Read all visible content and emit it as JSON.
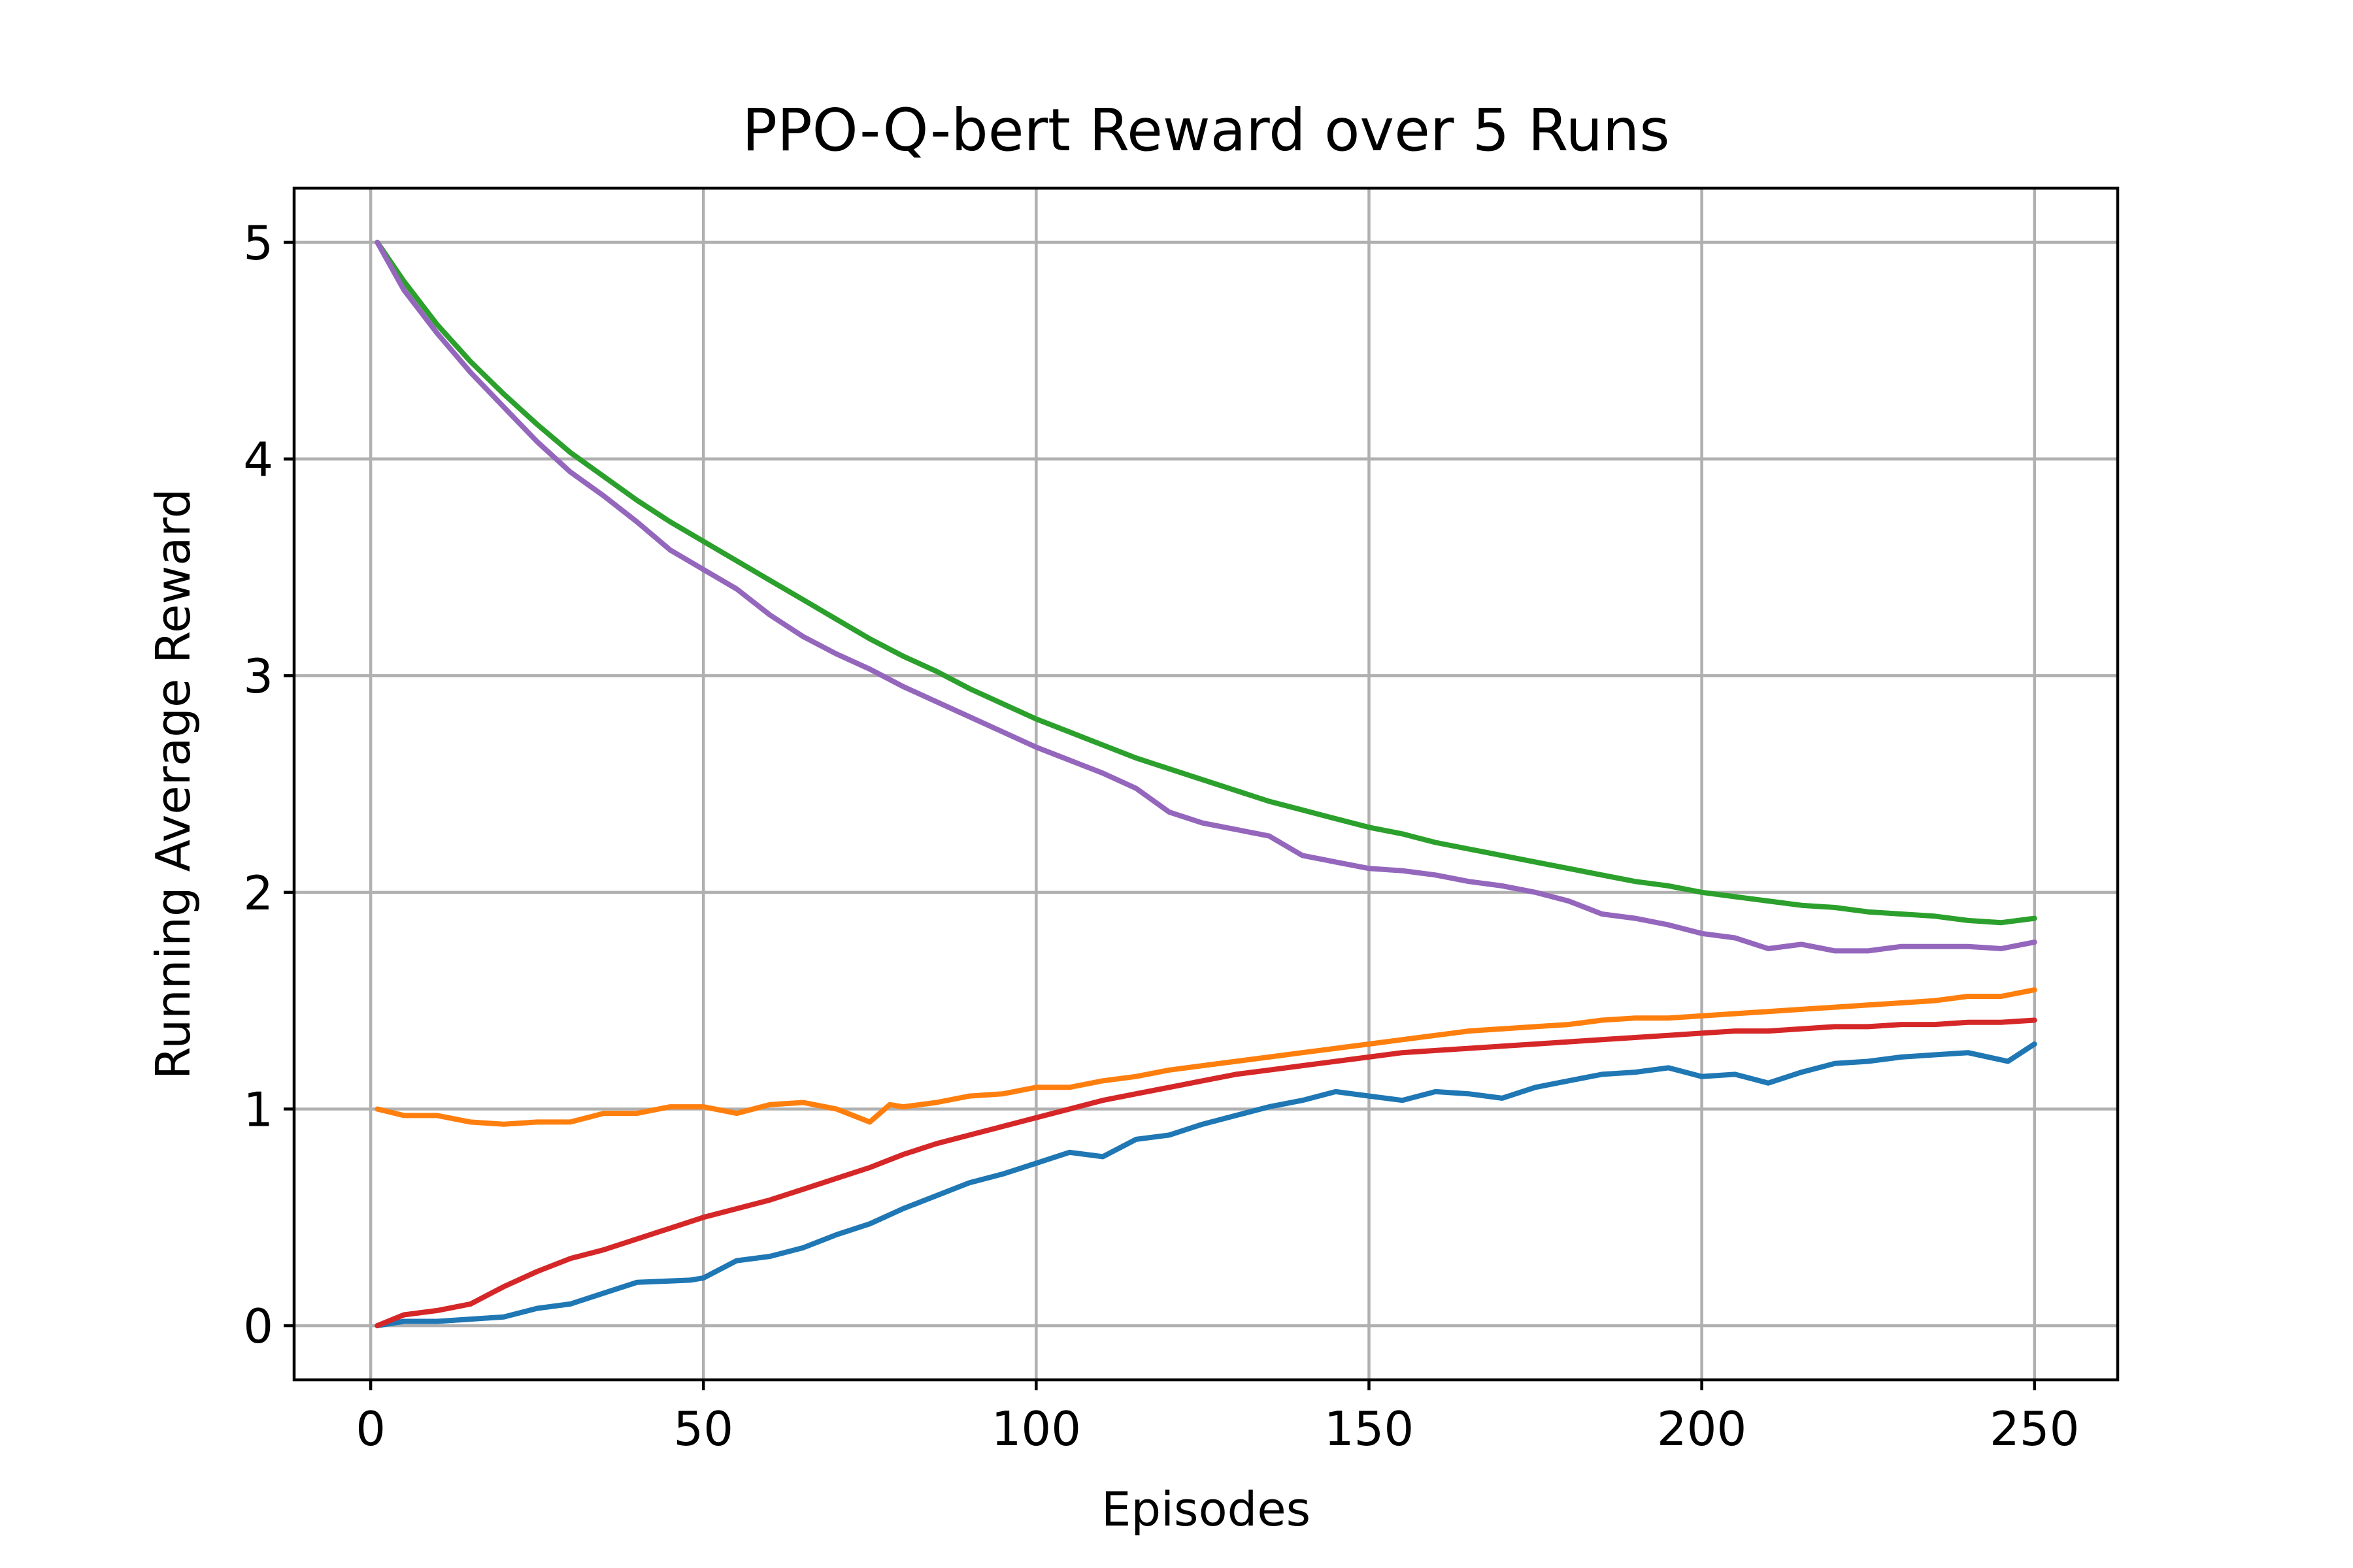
{
  "chart_data": {
    "type": "line",
    "title": "PPO-Q-bert Reward over 5 Runs",
    "xlabel": "Episodes",
    "ylabel": "Running Average Reward",
    "xlim": [
      -11.5,
      262.5
    ],
    "ylim": [
      -0.25,
      5.25
    ],
    "xticks": [
      "0",
      "50",
      "100",
      "150",
      "200",
      "250"
    ],
    "yticks": [
      "0",
      "1",
      "2",
      "3",
      "4",
      "5"
    ],
    "xtick_values": [
      0,
      50,
      100,
      150,
      200,
      250
    ],
    "ytick_values": [
      0,
      1,
      2,
      3,
      4,
      5
    ],
    "grid": true,
    "series": [
      {
        "color": "#1f77b4",
        "points": [
          [
            1,
            0.0
          ],
          [
            5,
            0.02
          ],
          [
            10,
            0.02
          ],
          [
            15,
            0.03
          ],
          [
            20,
            0.04
          ],
          [
            25,
            0.08
          ],
          [
            30,
            0.1
          ],
          [
            35,
            0.15
          ],
          [
            40,
            0.2
          ],
          [
            48,
            0.21
          ],
          [
            50,
            0.22
          ],
          [
            55,
            0.3
          ],
          [
            60,
            0.32
          ],
          [
            65,
            0.36
          ],
          [
            70,
            0.42
          ],
          [
            75,
            0.47
          ],
          [
            80,
            0.54
          ],
          [
            85,
            0.6
          ],
          [
            90,
            0.66
          ],
          [
            95,
            0.7
          ],
          [
            100,
            0.75
          ],
          [
            105,
            0.8
          ],
          [
            110,
            0.78
          ],
          [
            115,
            0.86
          ],
          [
            120,
            0.88
          ],
          [
            125,
            0.93
          ],
          [
            130,
            0.97
          ],
          [
            135,
            1.01
          ],
          [
            140,
            1.04
          ],
          [
            145,
            1.08
          ],
          [
            150,
            1.06
          ],
          [
            155,
            1.04
          ],
          [
            160,
            1.08
          ],
          [
            165,
            1.07
          ],
          [
            170,
            1.05
          ],
          [
            175,
            1.1
          ],
          [
            180,
            1.13
          ],
          [
            185,
            1.16
          ],
          [
            190,
            1.17
          ],
          [
            195,
            1.19
          ],
          [
            200,
            1.15
          ],
          [
            205,
            1.16
          ],
          [
            210,
            1.12
          ],
          [
            215,
            1.17
          ],
          [
            220,
            1.21
          ],
          [
            225,
            1.22
          ],
          [
            230,
            1.24
          ],
          [
            235,
            1.25
          ],
          [
            240,
            1.26
          ],
          [
            246,
            1.22
          ],
          [
            250,
            1.3
          ]
        ]
      },
      {
        "color": "#ff7f0e",
        "points": [
          [
            1,
            1.0
          ],
          [
            5,
            0.97
          ],
          [
            10,
            0.97
          ],
          [
            15,
            0.94
          ],
          [
            20,
            0.93
          ],
          [
            25,
            0.94
          ],
          [
            30,
            0.94
          ],
          [
            35,
            0.98
          ],
          [
            40,
            0.98
          ],
          [
            45,
            1.01
          ],
          [
            50,
            1.01
          ],
          [
            55,
            0.98
          ],
          [
            60,
            1.02
          ],
          [
            65,
            1.03
          ],
          [
            70,
            1.0
          ],
          [
            75,
            0.94
          ],
          [
            78,
            1.02
          ],
          [
            80,
            1.01
          ],
          [
            85,
            1.03
          ],
          [
            90,
            1.06
          ],
          [
            95,
            1.07
          ],
          [
            100,
            1.1
          ],
          [
            105,
            1.1
          ],
          [
            110,
            1.13
          ],
          [
            115,
            1.15
          ],
          [
            120,
            1.18
          ],
          [
            125,
            1.2
          ],
          [
            130,
            1.22
          ],
          [
            135,
            1.24
          ],
          [
            140,
            1.26
          ],
          [
            145,
            1.28
          ],
          [
            150,
            1.3
          ],
          [
            155,
            1.32
          ],
          [
            160,
            1.34
          ],
          [
            165,
            1.36
          ],
          [
            170,
            1.37
          ],
          [
            175,
            1.38
          ],
          [
            180,
            1.39
          ],
          [
            185,
            1.41
          ],
          [
            190,
            1.42
          ],
          [
            195,
            1.42
          ],
          [
            200,
            1.43
          ],
          [
            205,
            1.44
          ],
          [
            210,
            1.45
          ],
          [
            215,
            1.46
          ],
          [
            220,
            1.47
          ],
          [
            225,
            1.48
          ],
          [
            230,
            1.49
          ],
          [
            235,
            1.5
          ],
          [
            240,
            1.52
          ],
          [
            245,
            1.52
          ],
          [
            250,
            1.55
          ]
        ]
      },
      {
        "color": "#2ca02c",
        "points": [
          [
            1,
            5.0
          ],
          [
            5,
            4.82
          ],
          [
            10,
            4.62
          ],
          [
            15,
            4.45
          ],
          [
            20,
            4.3
          ],
          [
            25,
            4.16
          ],
          [
            30,
            4.03
          ],
          [
            35,
            3.92
          ],
          [
            40,
            3.81
          ],
          [
            45,
            3.71
          ],
          [
            50,
            3.62
          ],
          [
            55,
            3.53
          ],
          [
            60,
            3.44
          ],
          [
            65,
            3.35
          ],
          [
            70,
            3.26
          ],
          [
            75,
            3.17
          ],
          [
            80,
            3.09
          ],
          [
            85,
            3.02
          ],
          [
            90,
            2.94
          ],
          [
            95,
            2.87
          ],
          [
            100,
            2.8
          ],
          [
            105,
            2.74
          ],
          [
            110,
            2.68
          ],
          [
            115,
            2.62
          ],
          [
            120,
            2.57
          ],
          [
            125,
            2.52
          ],
          [
            130,
            2.47
          ],
          [
            135,
            2.42
          ],
          [
            140,
            2.38
          ],
          [
            145,
            2.34
          ],
          [
            150,
            2.3
          ],
          [
            155,
            2.27
          ],
          [
            160,
            2.23
          ],
          [
            165,
            2.2
          ],
          [
            170,
            2.17
          ],
          [
            175,
            2.14
          ],
          [
            180,
            2.11
          ],
          [
            185,
            2.08
          ],
          [
            190,
            2.05
          ],
          [
            195,
            2.03
          ],
          [
            200,
            2.0
          ],
          [
            205,
            1.98
          ],
          [
            210,
            1.96
          ],
          [
            215,
            1.94
          ],
          [
            220,
            1.93
          ],
          [
            225,
            1.91
          ],
          [
            230,
            1.9
          ],
          [
            235,
            1.89
          ],
          [
            240,
            1.87
          ],
          [
            245,
            1.86
          ],
          [
            250,
            1.88
          ]
        ]
      },
      {
        "color": "#d62728",
        "points": [
          [
            1,
            0.0
          ],
          [
            5,
            0.05
          ],
          [
            10,
            0.07
          ],
          [
            15,
            0.1
          ],
          [
            20,
            0.18
          ],
          [
            25,
            0.25
          ],
          [
            30,
            0.31
          ],
          [
            35,
            0.35
          ],
          [
            40,
            0.4
          ],
          [
            45,
            0.45
          ],
          [
            50,
            0.5
          ],
          [
            55,
            0.54
          ],
          [
            60,
            0.58
          ],
          [
            65,
            0.63
          ],
          [
            70,
            0.68
          ],
          [
            75,
            0.73
          ],
          [
            80,
            0.79
          ],
          [
            85,
            0.84
          ],
          [
            90,
            0.88
          ],
          [
            95,
            0.92
          ],
          [
            100,
            0.96
          ],
          [
            105,
            1.0
          ],
          [
            110,
            1.04
          ],
          [
            115,
            1.07
          ],
          [
            120,
            1.1
          ],
          [
            125,
            1.13
          ],
          [
            130,
            1.16
          ],
          [
            135,
            1.18
          ],
          [
            140,
            1.2
          ],
          [
            145,
            1.22
          ],
          [
            150,
            1.24
          ],
          [
            155,
            1.26
          ],
          [
            160,
            1.27
          ],
          [
            165,
            1.28
          ],
          [
            170,
            1.29
          ],
          [
            175,
            1.3
          ],
          [
            180,
            1.31
          ],
          [
            185,
            1.32
          ],
          [
            190,
            1.33
          ],
          [
            195,
            1.34
          ],
          [
            200,
            1.35
          ],
          [
            205,
            1.36
          ],
          [
            210,
            1.36
          ],
          [
            215,
            1.37
          ],
          [
            220,
            1.38
          ],
          [
            225,
            1.38
          ],
          [
            230,
            1.39
          ],
          [
            235,
            1.39
          ],
          [
            240,
            1.4
          ],
          [
            245,
            1.4
          ],
          [
            250,
            1.41
          ]
        ]
      },
      {
        "color": "#9467bd",
        "points": [
          [
            1,
            5.0
          ],
          [
            5,
            4.78
          ],
          [
            10,
            4.58
          ],
          [
            15,
            4.4
          ],
          [
            20,
            4.24
          ],
          [
            25,
            4.08
          ],
          [
            30,
            3.94
          ],
          [
            35,
            3.83
          ],
          [
            40,
            3.71
          ],
          [
            45,
            3.58
          ],
          [
            50,
            3.49
          ],
          [
            55,
            3.4
          ],
          [
            60,
            3.28
          ],
          [
            65,
            3.18
          ],
          [
            70,
            3.1
          ],
          [
            75,
            3.03
          ],
          [
            80,
            2.95
          ],
          [
            85,
            2.88
          ],
          [
            90,
            2.81
          ],
          [
            95,
            2.74
          ],
          [
            100,
            2.67
          ],
          [
            105,
            2.61
          ],
          [
            110,
            2.55
          ],
          [
            115,
            2.48
          ],
          [
            120,
            2.37
          ],
          [
            125,
            2.32
          ],
          [
            130,
            2.29
          ],
          [
            135,
            2.26
          ],
          [
            140,
            2.17
          ],
          [
            145,
            2.14
          ],
          [
            150,
            2.11
          ],
          [
            155,
            2.1
          ],
          [
            160,
            2.08
          ],
          [
            165,
            2.05
          ],
          [
            170,
            2.03
          ],
          [
            175,
            2.0
          ],
          [
            180,
            1.96
          ],
          [
            185,
            1.9
          ],
          [
            190,
            1.88
          ],
          [
            195,
            1.85
          ],
          [
            200,
            1.81
          ],
          [
            205,
            1.79
          ],
          [
            210,
            1.74
          ],
          [
            215,
            1.76
          ],
          [
            220,
            1.73
          ],
          [
            225,
            1.73
          ],
          [
            230,
            1.75
          ],
          [
            235,
            1.75
          ],
          [
            240,
            1.75
          ],
          [
            245,
            1.74
          ],
          [
            250,
            1.77
          ]
        ]
      }
    ]
  }
}
